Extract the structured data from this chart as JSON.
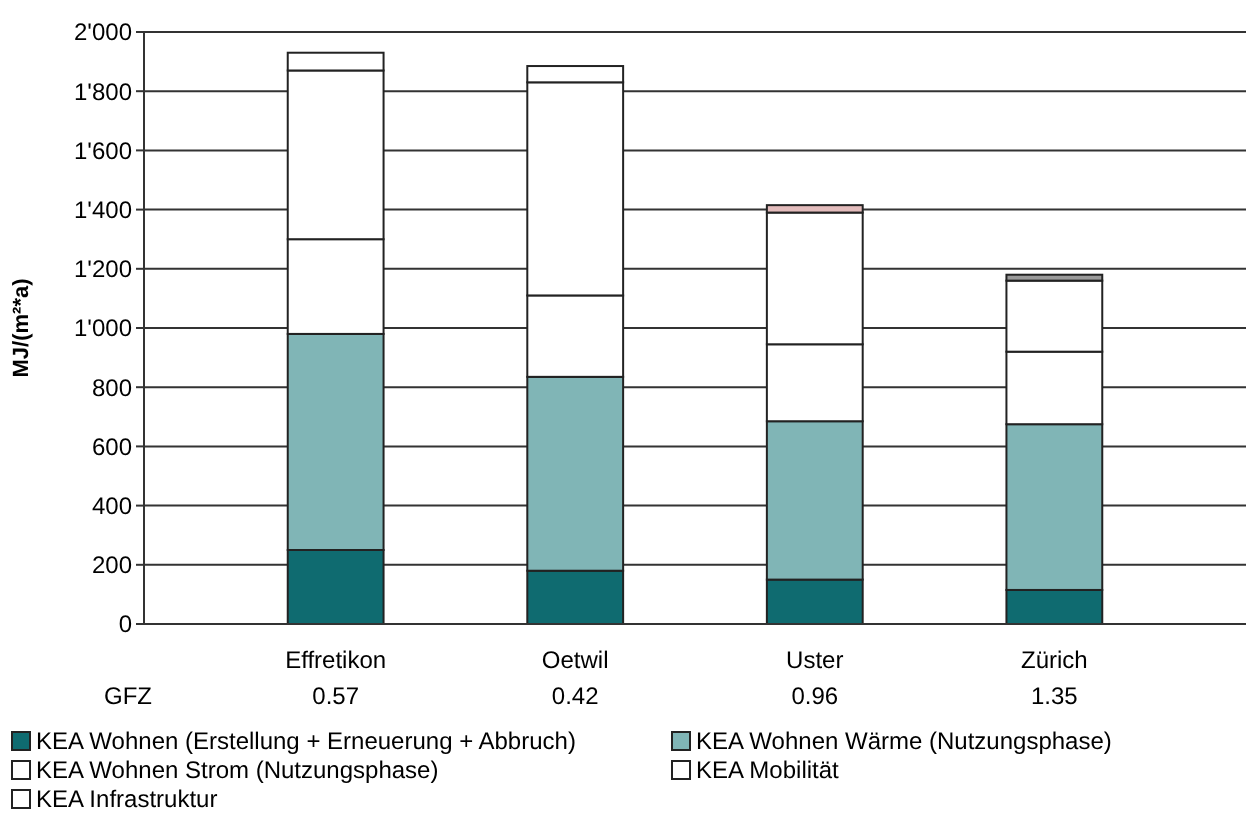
{
  "chart_data": {
    "type": "bar",
    "stacked": true,
    "ylabel": "MJ/(m²*a)",
    "categories": [
      "Effretikon",
      "Oetwil",
      "Uster",
      "Zürich"
    ],
    "series": [
      {
        "name": "KEA Wohnen (Erstellung + Erneuerung + Abbruch)",
        "color": "#0f6b70",
        "values": [
          250,
          180,
          150,
          115
        ]
      },
      {
        "name": "KEA Wohnen Wärme (Nutzungsphase)",
        "color": "#80b5b6",
        "values": [
          730,
          655,
          535,
          560
        ]
      },
      {
        "name": "KEA Wohnen Strom (Nutzungsphase)",
        "color": "#ffffff",
        "values": [
          320,
          275,
          260,
          245
        ]
      },
      {
        "name": "KEA Mobilität",
        "color": "#ffffff",
        "values": [
          570,
          720,
          445,
          240
        ]
      },
      {
        "name": "KEA Infrastruktur",
        "color": "#ffffff",
        "colors": [
          "#ffffff",
          "#ffffff",
          "#e3bcbc",
          "#9a9a9a"
        ],
        "values": [
          60,
          55,
          25,
          20
        ]
      }
    ],
    "ylim": [
      0,
      2000
    ],
    "yticks": [
      0,
      {
        "value": 200,
        "label": "200"
      },
      {
        "value": 400,
        "label": "400"
      },
      {
        "value": 600,
        "label": "600"
      },
      {
        "value": 800,
        "label": "800"
      },
      {
        "value": 1000,
        "label": "1'000"
      },
      {
        "value": 1200,
        "label": "1'200"
      },
      {
        "value": 1400,
        "label": "1'400"
      },
      {
        "value": 1600,
        "label": "1'600"
      },
      {
        "value": 1800,
        "label": "1'800"
      },
      {
        "value": 2000,
        "label": "2'000"
      }
    ],
    "grid": "y",
    "legend": "bottom",
    "annotations": [
      "GFZ",
      "0.57",
      "0.42",
      "0.96",
      "1.35"
    ]
  }
}
